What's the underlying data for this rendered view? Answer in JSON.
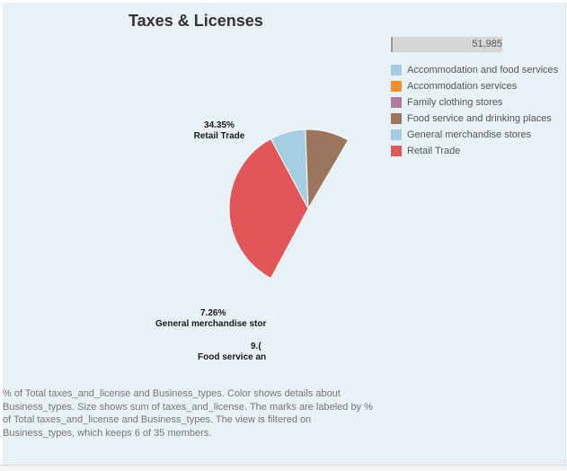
{
  "chart_data": {
    "type": "pie",
    "title": "Taxes & Licenses",
    "size_legend_value": "51,985",
    "legend": [
      {
        "label": "Accommodation and food services",
        "color": "#a6cee3"
      },
      {
        "label": "Accommodation services",
        "color": "#f28e2b"
      },
      {
        "label": "Family clothing stores",
        "color": "#b07aa1"
      },
      {
        "label": "Food service and drinking places",
        "color": "#9c755f"
      },
      {
        "label": "General merchandise stores",
        "color": "#a6cee3"
      },
      {
        "label": "Retail Trade",
        "color": "#e15759"
      }
    ],
    "slices": [
      {
        "category": "Retail Trade",
        "value": 34.35,
        "color": "#e15759"
      },
      {
        "category": "General merchandise stores",
        "value": 7.26,
        "color": "#a6cee3"
      },
      {
        "category": "Food service and drinking places",
        "value": 9.0,
        "color": "#9c755f"
      }
    ],
    "labels": [
      {
        "pct": "34.35%",
        "name": "Retail Trade"
      },
      {
        "pct": "7.26%",
        "name": "General merchandise stor"
      },
      {
        "pct": "9.(",
        "name": "Food service an"
      }
    ],
    "caption": "% of Total taxes_and_license and Business_types.  Color shows details about Business_types.  Size shows sum of taxes_and_license.  The marks are labeled by % of Total taxes_and_license and Business_types. The view is filtered on Business_types, which keeps 6 of 35 members."
  }
}
